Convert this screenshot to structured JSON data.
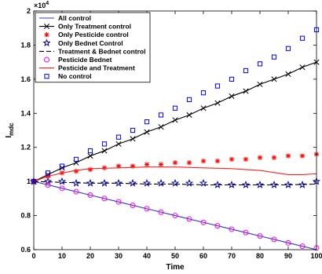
{
  "chart_data": {
    "type": "line",
    "xlabel": "Time",
    "ylabel": "I",
    "ylabel_subscript": "mdc",
    "exponent_label": "×10",
    "exponent_power": "4",
    "xlim": [
      0,
      100
    ],
    "ylim": [
      0.6,
      2.0
    ],
    "y_scale_factor": 10000,
    "xticks": [
      "0",
      "10",
      "20",
      "30",
      "40",
      "50",
      "60",
      "70",
      "80",
      "90",
      "100"
    ],
    "yticks": [
      "0.6",
      "0.8",
      "1",
      "1.2",
      "1.4",
      "1.6",
      "1.8",
      "2"
    ],
    "legend_position": "top-left",
    "grid": false,
    "series": [
      {
        "name": "All control",
        "style": "line",
        "color": "#3333cc",
        "x": [
          0,
          10,
          20,
          30,
          40,
          50,
          60,
          70,
          80,
          90,
          100
        ],
        "y": [
          1.0,
          0.96,
          0.92,
          0.88,
          0.84,
          0.8,
          0.76,
          0.72,
          0.68,
          0.64,
          0.6
        ]
      },
      {
        "name": "Only Treatment control",
        "style": "line-x",
        "color": "#000000",
        "x": [
          0,
          5,
          10,
          15,
          20,
          25,
          30,
          35,
          40,
          45,
          50,
          55,
          60,
          65,
          70,
          75,
          80,
          85,
          90,
          95,
          100
        ],
        "y": [
          1.0,
          1.04,
          1.08,
          1.11,
          1.15,
          1.18,
          1.22,
          1.25,
          1.29,
          1.32,
          1.36,
          1.39,
          1.43,
          1.46,
          1.5,
          1.53,
          1.57,
          1.6,
          1.63,
          1.67,
          1.7
        ]
      },
      {
        "name": "Only Pesticide control",
        "style": "asterisk",
        "color": "#ff0000",
        "x": [
          0,
          5,
          10,
          15,
          20,
          25,
          30,
          35,
          40,
          45,
          50,
          55,
          60,
          65,
          70,
          75,
          80,
          85,
          90,
          95,
          100
        ],
        "y": [
          1.0,
          1.03,
          1.05,
          1.06,
          1.07,
          1.08,
          1.09,
          1.09,
          1.1,
          1.1,
          1.11,
          1.11,
          1.12,
          1.12,
          1.13,
          1.13,
          1.14,
          1.14,
          1.15,
          1.15,
          1.16
        ]
      },
      {
        "name": "Only Bednet Control",
        "style": "star",
        "color": "#0000aa",
        "x": [
          0,
          5,
          10,
          15,
          20,
          25,
          30,
          35,
          40,
          45,
          50,
          55,
          60,
          65,
          70,
          75,
          80,
          85,
          90,
          95,
          100
        ],
        "y": [
          1.0,
          1.0,
          1.0,
          0.99,
          0.99,
          0.99,
          0.99,
          0.99,
          0.99,
          0.99,
          0.99,
          0.99,
          0.99,
          0.98,
          0.98,
          0.98,
          0.98,
          0.98,
          0.98,
          0.98,
          1.0
        ]
      },
      {
        "name": "Treatment & Bednet control",
        "style": "dash",
        "color": "#000000",
        "x": [
          0,
          10,
          20,
          30,
          40,
          50,
          60,
          70,
          80,
          90,
          100
        ],
        "y": [
          1.0,
          0.995,
          0.99,
          0.99,
          0.985,
          0.985,
          0.98,
          0.98,
          0.98,
          0.98,
          0.985
        ]
      },
      {
        "name": "Pesticide Bednet",
        "style": "circle",
        "color": "#ff00ff",
        "x": [
          0,
          5,
          10,
          15,
          20,
          25,
          30,
          35,
          40,
          45,
          50,
          55,
          60,
          65,
          70,
          75,
          80,
          85,
          90,
          95,
          100
        ],
        "y": [
          1.0,
          0.98,
          0.96,
          0.94,
          0.92,
          0.9,
          0.88,
          0.86,
          0.84,
          0.82,
          0.8,
          0.78,
          0.76,
          0.74,
          0.72,
          0.7,
          0.68,
          0.66,
          0.64,
          0.62,
          0.61
        ]
      },
      {
        "name": "Pesticide and Treatment",
        "style": "line",
        "color": "#ff2020",
        "x": [
          0,
          5,
          10,
          15,
          20,
          30,
          40,
          50,
          60,
          70,
          80,
          90,
          95,
          100
        ],
        "y": [
          1.0,
          1.03,
          1.05,
          1.065,
          1.075,
          1.08,
          1.085,
          1.085,
          1.08,
          1.075,
          1.065,
          1.04,
          1.04,
          1.045
        ]
      },
      {
        "name": "No control",
        "style": "square",
        "color": "#0000ff",
        "x": [
          0,
          5,
          10,
          15,
          20,
          25,
          30,
          35,
          40,
          45,
          50,
          55,
          60,
          65,
          70,
          75,
          80,
          85,
          90,
          95,
          100
        ],
        "y": [
          1.0,
          1.05,
          1.09,
          1.13,
          1.18,
          1.22,
          1.26,
          1.3,
          1.35,
          1.39,
          1.43,
          1.48,
          1.52,
          1.56,
          1.6,
          1.65,
          1.69,
          1.73,
          1.78,
          1.84,
          1.89
        ]
      }
    ]
  }
}
